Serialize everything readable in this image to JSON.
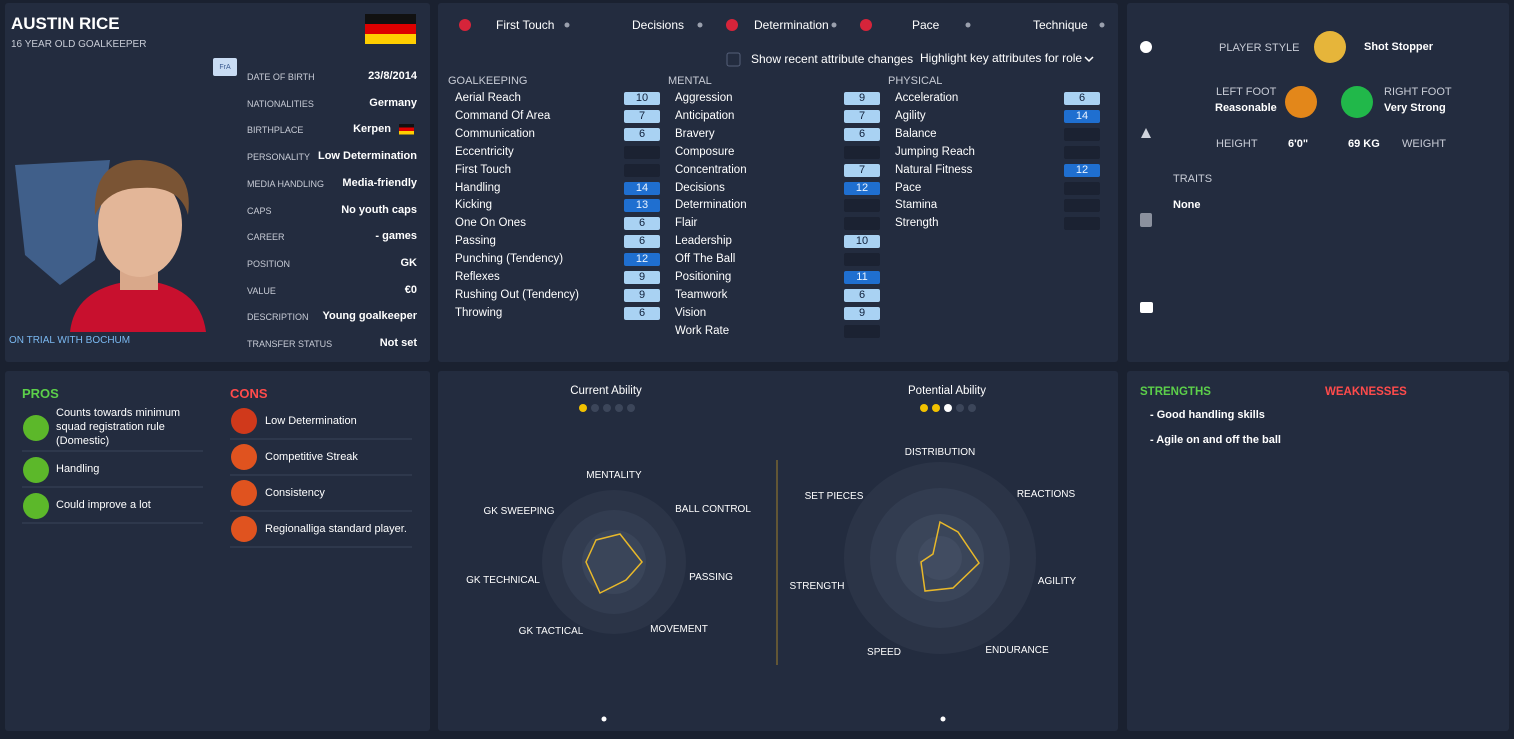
{
  "profile": {
    "name": "AUSTIN RICE",
    "description": "16 YEAR OLD GOALKEEPER",
    "badge": "FrA",
    "trial_status": "ON TRIAL WITH BOCHUM",
    "fields": [
      {
        "label": "DATE OF BIRTH",
        "value": "23/8/2014"
      },
      {
        "label": "NATIONALITIES",
        "value": "Germany"
      },
      {
        "label": "BIRTHPLACE",
        "value": "Kerpen"
      },
      {
        "label": "PERSONALITY",
        "value": "Low Determination"
      },
      {
        "label": "MEDIA HANDLING",
        "value": "Media-friendly"
      },
      {
        "label": "CAPS",
        "value": "No youth caps"
      },
      {
        "label": "CAREER",
        "value": "- games"
      },
      {
        "label": "POSITION",
        "value": "GK"
      },
      {
        "label": "VALUE",
        "value": "€0"
      },
      {
        "label": "DESCRIPTION",
        "value": "Young goalkeeper"
      },
      {
        "label": "TRANSFER STATUS",
        "value": "Not set"
      }
    ]
  },
  "attribute_tabs": [
    "First Touch",
    "Decisions",
    "Determination",
    "Pace",
    "Technique"
  ],
  "controls": {
    "show_changes": "Show recent attribute changes",
    "highlight": "Highlight key attributes for role"
  },
  "attributes": [
    {
      "title": "GOALKEEPING",
      "items": [
        {
          "name": "Aerial Reach",
          "value": 10
        },
        {
          "name": "Command Of Area",
          "value": 7
        },
        {
          "name": "Communication",
          "value": 6
        },
        {
          "name": "Eccentricity",
          "value": null
        },
        {
          "name": "First Touch",
          "value": null
        },
        {
          "name": "Handling",
          "value": 14,
          "key": true
        },
        {
          "name": "Kicking",
          "value": 13,
          "key": true
        },
        {
          "name": "One On Ones",
          "value": 6
        },
        {
          "name": "Passing",
          "value": 6
        },
        {
          "name": "Punching (Tendency)",
          "value": 12,
          "key": true
        },
        {
          "name": "Reflexes",
          "value": 9
        },
        {
          "name": "Rushing Out (Tendency)",
          "value": 9
        },
        {
          "name": "Throwing",
          "value": 6
        }
      ]
    },
    {
      "title": "MENTAL",
      "items": [
        {
          "name": "Aggression",
          "value": 9
        },
        {
          "name": "Anticipation",
          "value": 7
        },
        {
          "name": "Bravery",
          "value": 6
        },
        {
          "name": "Composure",
          "value": null
        },
        {
          "name": "Concentration",
          "value": 7
        },
        {
          "name": "Decisions",
          "value": 12,
          "key": true
        },
        {
          "name": "Determination",
          "value": null
        },
        {
          "name": "Flair",
          "value": null
        },
        {
          "name": "Leadership",
          "value": 10
        },
        {
          "name": "Off The Ball",
          "value": null
        },
        {
          "name": "Positioning",
          "value": 11,
          "key": true
        },
        {
          "name": "Teamwork",
          "value": 6
        },
        {
          "name": "Vision",
          "value": 9
        },
        {
          "name": "Work Rate",
          "value": null
        }
      ]
    },
    {
      "title": "PHYSICAL",
      "items": [
        {
          "name": "Acceleration",
          "value": 6
        },
        {
          "name": "Agility",
          "value": 14,
          "key": true
        },
        {
          "name": "Balance",
          "value": null
        },
        {
          "name": "Jumping Reach",
          "value": null
        },
        {
          "name": "Natural Fitness",
          "value": 12,
          "key": true
        },
        {
          "name": "Pace",
          "value": null
        },
        {
          "name": "Stamina",
          "value": null
        },
        {
          "name": "Strength",
          "value": null
        }
      ]
    }
  ],
  "player_info": {
    "player_style_label": "PLAYER STYLE",
    "player_style": "Shot Stopper",
    "left_foot_label": "LEFT FOOT",
    "left_foot": "Reasonable",
    "right_foot_label": "RIGHT FOOT",
    "right_foot": "Very Strong",
    "height_label": "HEIGHT",
    "height": "6'0\"",
    "weight": "69 KG",
    "weight_label": "WEIGHT",
    "traits_label": "TRAITS",
    "traits": "None"
  },
  "pros": {
    "title": "PROS",
    "items": [
      "Counts towards minimum squad registration rule (Domestic)",
      "Handling",
      "Could improve a lot"
    ]
  },
  "cons": {
    "title": "CONS",
    "items": [
      "Low Determination",
      "Competitive Streak",
      "Consistency",
      "Regionalliga standard player."
    ]
  },
  "abilities": [
    {
      "title": "Current Ability",
      "labels": [
        "MENTALITY",
        "BALL CONTROL",
        "PASSING",
        "MOVEMENT",
        "GK TACTICAL",
        "GK TECHNICAL",
        "GK SWEEPING"
      ]
    },
    {
      "title": "Potential Ability",
      "labels": [
        "DISTRIBUTION",
        "REACTIONS",
        "AGILITY",
        "ENDURANCE",
        "SPEED",
        "STRENGTH",
        "SET PIECES"
      ]
    }
  ],
  "strengths": {
    "title": "STRENGTHS",
    "items": [
      "- Good handling skills",
      "- Agile on and off the ball"
    ]
  },
  "weaknesses": {
    "title": "WEAKNESSES"
  }
}
